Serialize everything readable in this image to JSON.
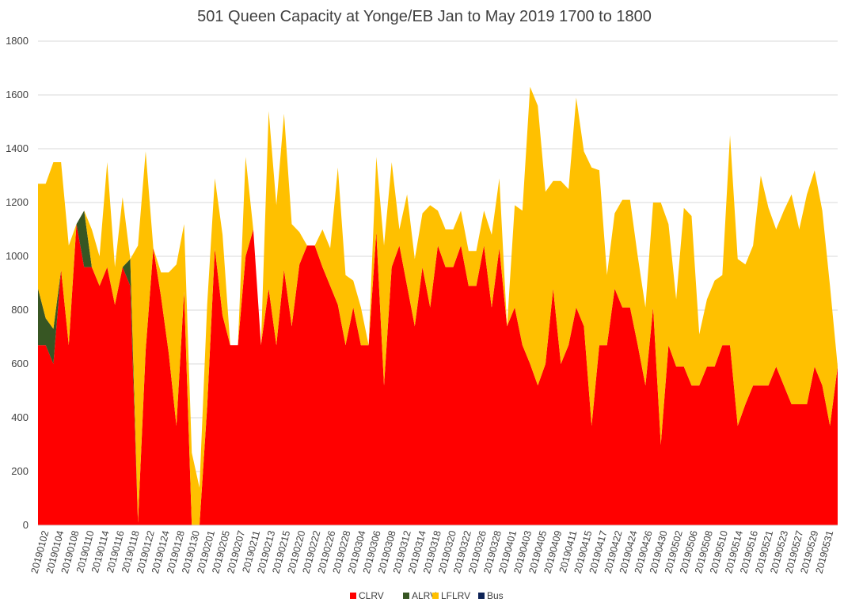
{
  "chart_data": {
    "type": "area",
    "stacked": true,
    "title": "501 Queen Capacity at Yonge/EB Jan to May 2019 1700 to 1800",
    "xlabel": "",
    "ylabel": "",
    "ylim": [
      0,
      1800
    ],
    "yticks": [
      0,
      200,
      400,
      600,
      800,
      1000,
      1200,
      1400,
      1600,
      1800
    ],
    "grid": true,
    "legend_position": "bottom",
    "x_tick_labels": [
      "20190102",
      "20190104",
      "20190108",
      "20190110",
      "20190114",
      "20190116",
      "20190118",
      "20190122",
      "20190124",
      "20190128",
      "20190130",
      "20190201",
      "20190205",
      "20190207",
      "20190211",
      "20190213",
      "20190215",
      "20190220",
      "20190222",
      "20190226",
      "20190228",
      "20190304",
      "20190306",
      "20190308",
      "20190312",
      "20190314",
      "20190318",
      "20190320",
      "20190322",
      "20190326",
      "20190328",
      "20190401",
      "20190403",
      "20190405",
      "20190409",
      "20190411",
      "20190415",
      "20190417",
      "20190422",
      "20190424",
      "20190426",
      "20190430",
      "20190502",
      "20190506",
      "20190508",
      "20190510",
      "20190514",
      "20190516",
      "20190521",
      "20190523",
      "20190527",
      "20190529",
      "20190531"
    ],
    "series": [
      {
        "name": "CLRV",
        "color": "#ff0000",
        "values": [
          670,
          670,
          600,
          950,
          670,
          1120,
          960,
          960,
          890,
          960,
          820,
          960,
          890,
          10,
          650,
          1030,
          850,
          640,
          370,
          870,
          0,
          0,
          440,
          1030,
          780,
          670,
          670,
          1000,
          1100,
          670,
          880,
          670,
          950,
          740,
          970,
          1040,
          1040,
          960,
          890,
          820,
          670,
          810,
          670,
          670,
          1090,
          520,
          960,
          1040,
          890,
          740,
          960,
          810,
          1040,
          960,
          960,
          1040,
          890,
          890,
          1040,
          810,
          1030,
          740,
          810,
          670,
          600,
          520,
          600,
          880,
          600,
          670,
          810,
          740,
          370,
          670,
          670,
          880,
          810,
          810,
          670,
          520,
          810,
          300,
          670,
          590,
          590,
          520,
          520,
          590,
          590,
          670,
          670,
          370,
          450,
          520,
          520,
          520,
          590,
          520,
          450,
          450,
          450,
          590,
          520,
          370,
          590
        ]
      },
      {
        "name": "ALRV",
        "color": "#375623",
        "values": [
          210,
          100,
          130,
          0,
          0,
          0,
          210,
          0,
          0,
          0,
          0,
          0,
          100,
          0,
          0,
          0,
          0,
          0,
          0,
          0,
          0,
          0,
          0,
          0,
          0,
          0,
          0,
          0,
          0,
          0,
          0,
          0,
          0,
          0,
          0,
          0,
          0,
          0,
          0,
          0,
          0,
          0,
          0,
          0,
          0,
          0,
          0,
          0,
          0,
          0,
          0,
          0,
          0,
          0,
          0,
          0,
          0,
          0,
          0,
          0,
          0,
          0,
          0,
          0,
          0,
          0,
          0,
          0,
          0,
          0,
          0,
          0,
          0,
          0,
          0,
          0,
          0,
          0,
          0,
          0,
          0,
          0,
          0,
          0,
          0,
          0,
          0,
          0,
          0,
          0,
          0,
          0,
          0,
          0,
          0,
          0,
          0,
          0,
          0,
          0,
          0,
          0,
          0,
          0,
          0
        ]
      },
      {
        "name": "LFLRV",
        "color": "#ffc000",
        "values": [
          390,
          500,
          620,
          400,
          370,
          0,
          0,
          140,
          110,
          390,
          140,
          260,
          0,
          1030,
          740,
          0,
          90,
          300,
          600,
          250,
          270,
          140,
          380,
          260,
          300,
          0,
          0,
          370,
          0,
          0,
          660,
          520,
          580,
          380,
          120,
          0,
          0,
          140,
          140,
          510,
          260,
          100,
          140,
          0,
          280,
          520,
          390,
          60,
          340,
          250,
          200,
          380,
          130,
          140,
          140,
          130,
          130,
          130,
          130,
          270,
          260,
          0,
          380,
          500,
          1030,
          1040,
          640,
          400,
          680,
          580,
          780,
          650,
          960,
          650,
          260,
          280,
          400,
          400,
          330,
          290,
          390,
          900,
          450,
          250,
          590,
          630,
          190,
          250,
          320,
          260,
          780,
          620,
          520,
          520,
          780,
          660,
          510,
          650,
          780,
          650,
          780,
          730,
          650,
          520
        ]
      },
      {
        "name": "Bus",
        "color": "#0e2356",
        "values": [
          0,
          0,
          0,
          0,
          0,
          0,
          0,
          0,
          0,
          0,
          0,
          0,
          0,
          0,
          0,
          0,
          0,
          0,
          0,
          0,
          0,
          0,
          0,
          0,
          0,
          0,
          0,
          0,
          0,
          0,
          0,
          0,
          0,
          0,
          0,
          0,
          0,
          0,
          0,
          0,
          0,
          0,
          0,
          0,
          0,
          0,
          0,
          0,
          0,
          0,
          0,
          0,
          0,
          0,
          0,
          0,
          0,
          0,
          0,
          0,
          0,
          0,
          0,
          0,
          0,
          0,
          0,
          0,
          0,
          0,
          0,
          0,
          0,
          0,
          0,
          0,
          0,
          0,
          0,
          0,
          0,
          0,
          0,
          0,
          0,
          0,
          0,
          0,
          0,
          0,
          0,
          0,
          0,
          0,
          0,
          0,
          0,
          0,
          0,
          0,
          0,
          0,
          0,
          0,
          0
        ]
      }
    ]
  }
}
